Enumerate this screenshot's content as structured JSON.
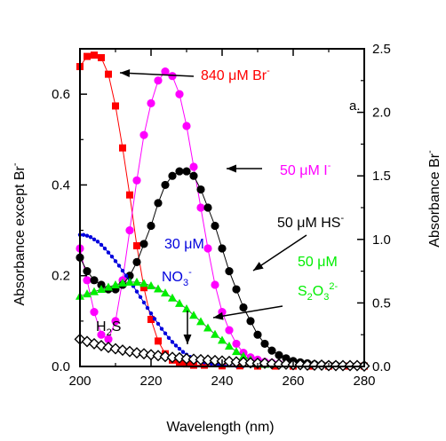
{
  "chart_data": {
    "type": "scatter",
    "xlabel": "Wavelength (nm)",
    "ylabel_left": "Absorbance except Br",
    "ylabel_left_sup": "-",
    "ylabel_right": "Absorbance Br",
    "ylabel_right_sup": "-",
    "xlim": [
      200,
      280
    ],
    "ylim_left": [
      0,
      0.7
    ],
    "ylim_right": [
      0,
      2.5
    ],
    "x_ticks": [
      "200",
      "220",
      "240",
      "260",
      "280"
    ],
    "y_left_ticks": [
      "0.0",
      "0.2",
      "0.4",
      "0.6"
    ],
    "y_right_ticks": [
      "0.0",
      "0.5",
      "1.0",
      "1.5",
      "2.0",
      "2.5"
    ],
    "panel_label": "a.",
    "colors": {
      "bromide": "#ff0000",
      "iodide": "#ff00ff",
      "bisulfide": "#000000",
      "nitrate": "#0000dd",
      "thiosulfate": "#00ee00",
      "h2s": "#000000",
      "arrow": "#000000"
    },
    "series": [
      {
        "marker": "square",
        "color": "#ff0000",
        "axis": "right",
        "x": [
          200,
          202,
          204,
          206,
          208,
          210,
          212,
          214,
          216,
          218,
          220,
          222,
          224,
          226,
          228,
          230,
          232,
          235,
          240,
          245,
          250,
          255,
          260,
          265,
          270,
          275,
          280
        ],
        "y": [
          2.36,
          2.44,
          2.45,
          2.43,
          2.3,
          2.05,
          1.72,
          1.35,
          0.95,
          0.62,
          0.37,
          0.2,
          0.1,
          0.05,
          0.03,
          0.02,
          0.01,
          0.01,
          0.005,
          0.005,
          0.003,
          0.003,
          0.003,
          0.003,
          0.003,
          0.003,
          0.003
        ]
      },
      {
        "marker": "circle",
        "color": "#ff00ff",
        "axis": "left",
        "x": [
          200,
          202,
          204,
          206,
          208,
          210,
          212,
          214,
          216,
          218,
          220,
          222,
          224,
          226,
          228,
          230,
          232,
          234,
          236,
          238,
          240,
          242,
          244,
          246,
          248,
          250,
          252,
          254,
          256
        ],
        "y": [
          0.26,
          0.19,
          0.12,
          0.07,
          0.06,
          0.1,
          0.19,
          0.3,
          0.41,
          0.51,
          0.58,
          0.63,
          0.65,
          0.64,
          0.6,
          0.53,
          0.44,
          0.35,
          0.26,
          0.18,
          0.12,
          0.08,
          0.05,
          0.03,
          0.02,
          0.015,
          0.01,
          0.008,
          0.006
        ]
      },
      {
        "marker": "circle",
        "color": "#000000",
        "axis": "left",
        "x": [
          200,
          202,
          204,
          206,
          208,
          210,
          212,
          214,
          216,
          218,
          220,
          222,
          224,
          226,
          228,
          230,
          232,
          234,
          236,
          238,
          240,
          242,
          244,
          246,
          248,
          250,
          252,
          254,
          256,
          258,
          260,
          262,
          264,
          266,
          268,
          270,
          272,
          274,
          276,
          278,
          280
        ],
        "y": [
          0.24,
          0.21,
          0.19,
          0.18,
          0.17,
          0.17,
          0.18,
          0.2,
          0.23,
          0.27,
          0.31,
          0.36,
          0.4,
          0.42,
          0.43,
          0.43,
          0.42,
          0.39,
          0.35,
          0.31,
          0.26,
          0.21,
          0.17,
          0.13,
          0.1,
          0.07,
          0.05,
          0.035,
          0.025,
          0.018,
          0.012,
          0.009,
          0.007,
          0.005,
          0.004,
          0.003,
          0.003,
          0.002,
          0.002,
          0.002,
          0.002
        ]
      },
      {
        "marker": "dot",
        "color": "#0000dd",
        "axis": "left",
        "x": [
          200,
          201,
          202,
          203,
          204,
          205,
          206,
          207,
          208,
          209,
          210,
          211,
          212,
          213,
          214,
          215,
          216,
          217,
          218,
          219,
          220,
          221,
          222,
          223,
          224,
          225,
          226,
          227,
          228,
          229,
          230,
          231,
          232,
          233,
          234,
          235,
          236,
          237,
          238,
          239,
          240,
          242,
          244,
          246,
          248,
          250
        ],
        "y": [
          0.29,
          0.29,
          0.288,
          0.285,
          0.28,
          0.275,
          0.268,
          0.26,
          0.251,
          0.242,
          0.232,
          0.222,
          0.211,
          0.2,
          0.189,
          0.177,
          0.165,
          0.153,
          0.141,
          0.129,
          0.117,
          0.105,
          0.094,
          0.083,
          0.073,
          0.063,
          0.054,
          0.046,
          0.039,
          0.032,
          0.026,
          0.021,
          0.017,
          0.014,
          0.011,
          0.009,
          0.007,
          0.006,
          0.005,
          0.004,
          0.003,
          0.002,
          0.001,
          0.001,
          0.001,
          0.001
        ]
      },
      {
        "marker": "triangle",
        "color": "#00ee00",
        "axis": "left",
        "x": [
          200,
          202,
          204,
          206,
          208,
          210,
          212,
          214,
          216,
          218,
          220,
          222,
          224,
          226,
          228,
          230,
          232,
          234,
          236,
          238,
          240,
          242,
          244,
          246,
          248,
          250,
          252
        ],
        "y": [
          0.155,
          0.16,
          0.165,
          0.17,
          0.175,
          0.18,
          0.184,
          0.186,
          0.186,
          0.183,
          0.178,
          0.171,
          0.162,
          0.151,
          0.139,
          0.127,
          0.113,
          0.099,
          0.085,
          0.071,
          0.058,
          0.045,
          0.033,
          0.023,
          0.015,
          0.009,
          0.005
        ]
      },
      {
        "marker": "diamond",
        "color": "#000000",
        "axis": "left",
        "x": [
          200,
          202,
          204,
          206,
          208,
          210,
          212,
          214,
          216,
          218,
          220,
          222,
          224,
          226,
          228,
          230,
          232,
          234,
          236,
          238,
          240,
          242,
          244,
          246,
          248,
          250,
          252,
          254,
          256,
          258,
          260,
          262,
          264,
          266,
          268,
          270,
          272,
          274,
          276,
          278,
          280
        ],
        "y": [
          0.06,
          0.055,
          0.05,
          0.046,
          0.042,
          0.039,
          0.036,
          0.033,
          0.03,
          0.028,
          0.026,
          0.024,
          0.022,
          0.02,
          0.019,
          0.017,
          0.016,
          0.015,
          0.014,
          0.013,
          0.012,
          0.011,
          0.01,
          0.009,
          0.008,
          0.007,
          0.007,
          0.006,
          0.005,
          0.005,
          0.004,
          0.004,
          0.003,
          0.003,
          0.003,
          0.002,
          0.002,
          0.002,
          0.002,
          0.002,
          0.001
        ]
      }
    ],
    "annotations": [
      {
        "key": "br",
        "parts": [
          {
            "text": "840 μM Br"
          },
          {
            "text": "-",
            "sup": true
          }
        ],
        "color": "#ff0000"
      },
      {
        "key": "iodide",
        "parts": [
          {
            "text": "50 μM I"
          },
          {
            "text": "-",
            "sup": true
          }
        ],
        "color": "#ff00ff"
      },
      {
        "key": "hs",
        "parts": [
          {
            "text": "50 μM HS"
          },
          {
            "text": "-",
            "sup": true
          }
        ],
        "color": "#000000"
      },
      {
        "key": "no3_a",
        "parts": [
          {
            "text": "30 μM"
          }
        ],
        "color": "#0000dd"
      },
      {
        "key": "no3_b",
        "parts": [
          {
            "text": "NO"
          },
          {
            "text": "3",
            "sub": true
          },
          {
            "text": "-",
            "sup": true
          }
        ],
        "color": "#0000dd"
      },
      {
        "key": "s2o3_a",
        "parts": [
          {
            "text": "50 μM"
          }
        ],
        "color": "#00ee00"
      },
      {
        "key": "s2o3_b",
        "parts": [
          {
            "text": "S"
          },
          {
            "text": "2",
            "sub": true
          },
          {
            "text": "O"
          },
          {
            "text": "3",
            "sub": true
          },
          {
            "text": "2-",
            "sup": true
          }
        ],
        "color": "#00ee00"
      },
      {
        "key": "h2s",
        "parts": [
          {
            "text": "H"
          },
          {
            "text": "2",
            "sub": true
          },
          {
            "text": "S"
          }
        ],
        "color": "#000000"
      }
    ]
  }
}
